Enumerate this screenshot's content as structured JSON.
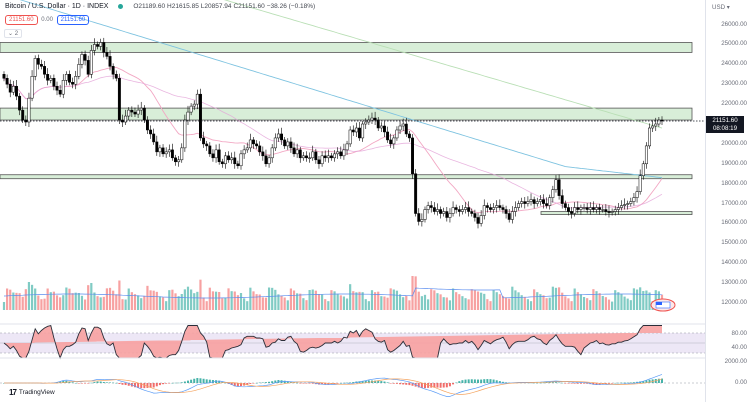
{
  "header": {
    "symbol_title": "Bitcoin / U.S. Dollar · 1D · INDEX",
    "market_status_color": "#26a69a",
    "ohlc": {
      "open": "O21189.60",
      "high": "H21615.85",
      "low": "L20857.94",
      "close": "C21151.60",
      "change": "−38.26 (−0.18%)"
    },
    "bid": "21151.60",
    "spread": "0.00",
    "ask": "21151.60",
    "collapse_label": "⌄ 2"
  },
  "price_axis": {
    "unit_label": "USD ▾",
    "ticks": [
      "26000.00",
      "25000.00",
      "24000.00",
      "23000.00",
      "22000.00",
      "20000.00",
      "19000.00",
      "18000.00",
      "17000.00",
      "16000.00",
      "15000.00",
      "14000.00",
      "13000.00",
      "12000.00"
    ],
    "current_price": "21151.60",
    "countdown": "08:08:19"
  },
  "rsi_axis": {
    "ticks": [
      "80.00",
      "40.00"
    ]
  },
  "macd_axis": {
    "ticks": [
      "2000.00",
      "0.00"
    ]
  },
  "footer": {
    "brand": "TradingView",
    "brand_mark": "17"
  },
  "colors": {
    "up_candle": "#ffffff",
    "down_candle": "#000000",
    "zone_fill": "#d8eed8",
    "zone_border": "#555555",
    "vol_up": "#80cbc4",
    "vol_down": "#f7a1a1",
    "ma_blue": "#7ec3e0",
    "ma_pink": "#f2a7c3",
    "ma_green": "#b9dfb5",
    "rsi_line": "#2a2e39",
    "rsi_band": "#ede7f6",
    "macd_line": "#5b9cf6",
    "signal_line": "#f4a460"
  },
  "chart_data": {
    "type": "candlestick",
    "title": "Bitcoin / U.S. Dollar · 1D · INDEX",
    "ylabel": "USD",
    "ylim": [
      11500,
      26500
    ],
    "resistance_zones": [
      {
        "low": 24600,
        "high": 25100
      },
      {
        "low": 21200,
        "high": 21800
      },
      {
        "low": 18250,
        "high": 18450
      },
      {
        "low": 16450,
        "high": 16600
      }
    ],
    "current_price_line": 21151.6,
    "closes": [
      23300,
      23000,
      22600,
      22900,
      22400,
      21700,
      21200,
      21100,
      22300,
      23400,
      24300,
      24000,
      23900,
      23500,
      23200,
      23300,
      22900,
      22700,
      22500,
      23200,
      23500,
      23100,
      23000,
      23400,
      24000,
      24500,
      24200,
      23500,
      24700,
      25000,
      24900,
      25100,
      24600,
      24400,
      23900,
      23500,
      23300,
      21200,
      21100,
      21400,
      21700,
      21600,
      21500,
      21700,
      21800,
      21200,
      20700,
      20500,
      20100,
      19600,
      19800,
      19500,
      19600,
      19700,
      19300,
      19100,
      19200,
      19800,
      21200,
      21600,
      21900,
      22000,
      22500,
      20300,
      20000,
      19900,
      19500,
      19300,
      19700,
      19100,
      19000,
      19400,
      19200,
      19300,
      19000,
      18900,
      19500,
      19700,
      19800,
      20200,
      20000,
      19900,
      19600,
      19400,
      19000,
      19300,
      19800,
      20300,
      20500,
      20200,
      19900,
      20100,
      19800,
      19500,
      19700,
      19300,
      19400,
      19300,
      19300,
      19600,
      19200,
      19000,
      19400,
      19300,
      19400,
      19300,
      19500,
      19600,
      19400,
      19700,
      20000,
      20700,
      20600,
      20800,
      20300,
      21000,
      21100,
      21200,
      21300,
      21200,
      20800,
      20900,
      20600,
      20200,
      20000,
      20300,
      20700,
      20900,
      21000,
      20500,
      20300,
      18500,
      16500,
      16100,
      16200,
      16700,
      16900,
      16800,
      16600,
      16700,
      16500,
      16600,
      16300,
      16500,
      16800,
      16700,
      16600,
      16700,
      16800,
      16600,
      16500,
      16300,
      16000,
      16400,
      16900,
      16800,
      16700,
      16800,
      16900,
      16800,
      16700,
      16500,
      16200,
      16600,
      16800,
      17000,
      17100,
      17000,
      17100,
      17200,
      17000,
      17100,
      17200,
      17000,
      16900,
      17300,
      17700,
      18200,
      17400,
      17000,
      16800,
      16600,
      16500,
      16800,
      16700,
      16800,
      16800,
      16700,
      16800,
      16700,
      16800,
      16700,
      16700,
      16600,
      16550,
      16600,
      16700,
      16800,
      16900,
      16950,
      17000,
      17100,
      17300,
      17600,
      18400,
      19000,
      19900,
      20800,
      20900,
      21000,
      21200,
      21151
    ]
  }
}
